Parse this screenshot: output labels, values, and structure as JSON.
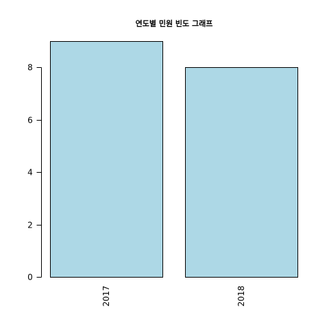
{
  "chart_data": {
    "type": "bar",
    "title": "연도별 민원 빈도 그래프",
    "xlabel": "",
    "ylabel": "",
    "categories": [
      "2017",
      "2018"
    ],
    "values": [
      9,
      8
    ],
    "y_ticks": [
      "0",
      "2",
      "4",
      "6",
      "8"
    ],
    "ylim": [
      0,
      9
    ],
    "bar_color": "#add8e6",
    "border_color": "#000000",
    "grid": false,
    "legend": "none",
    "x_tick_label_orientation": "vertical"
  }
}
